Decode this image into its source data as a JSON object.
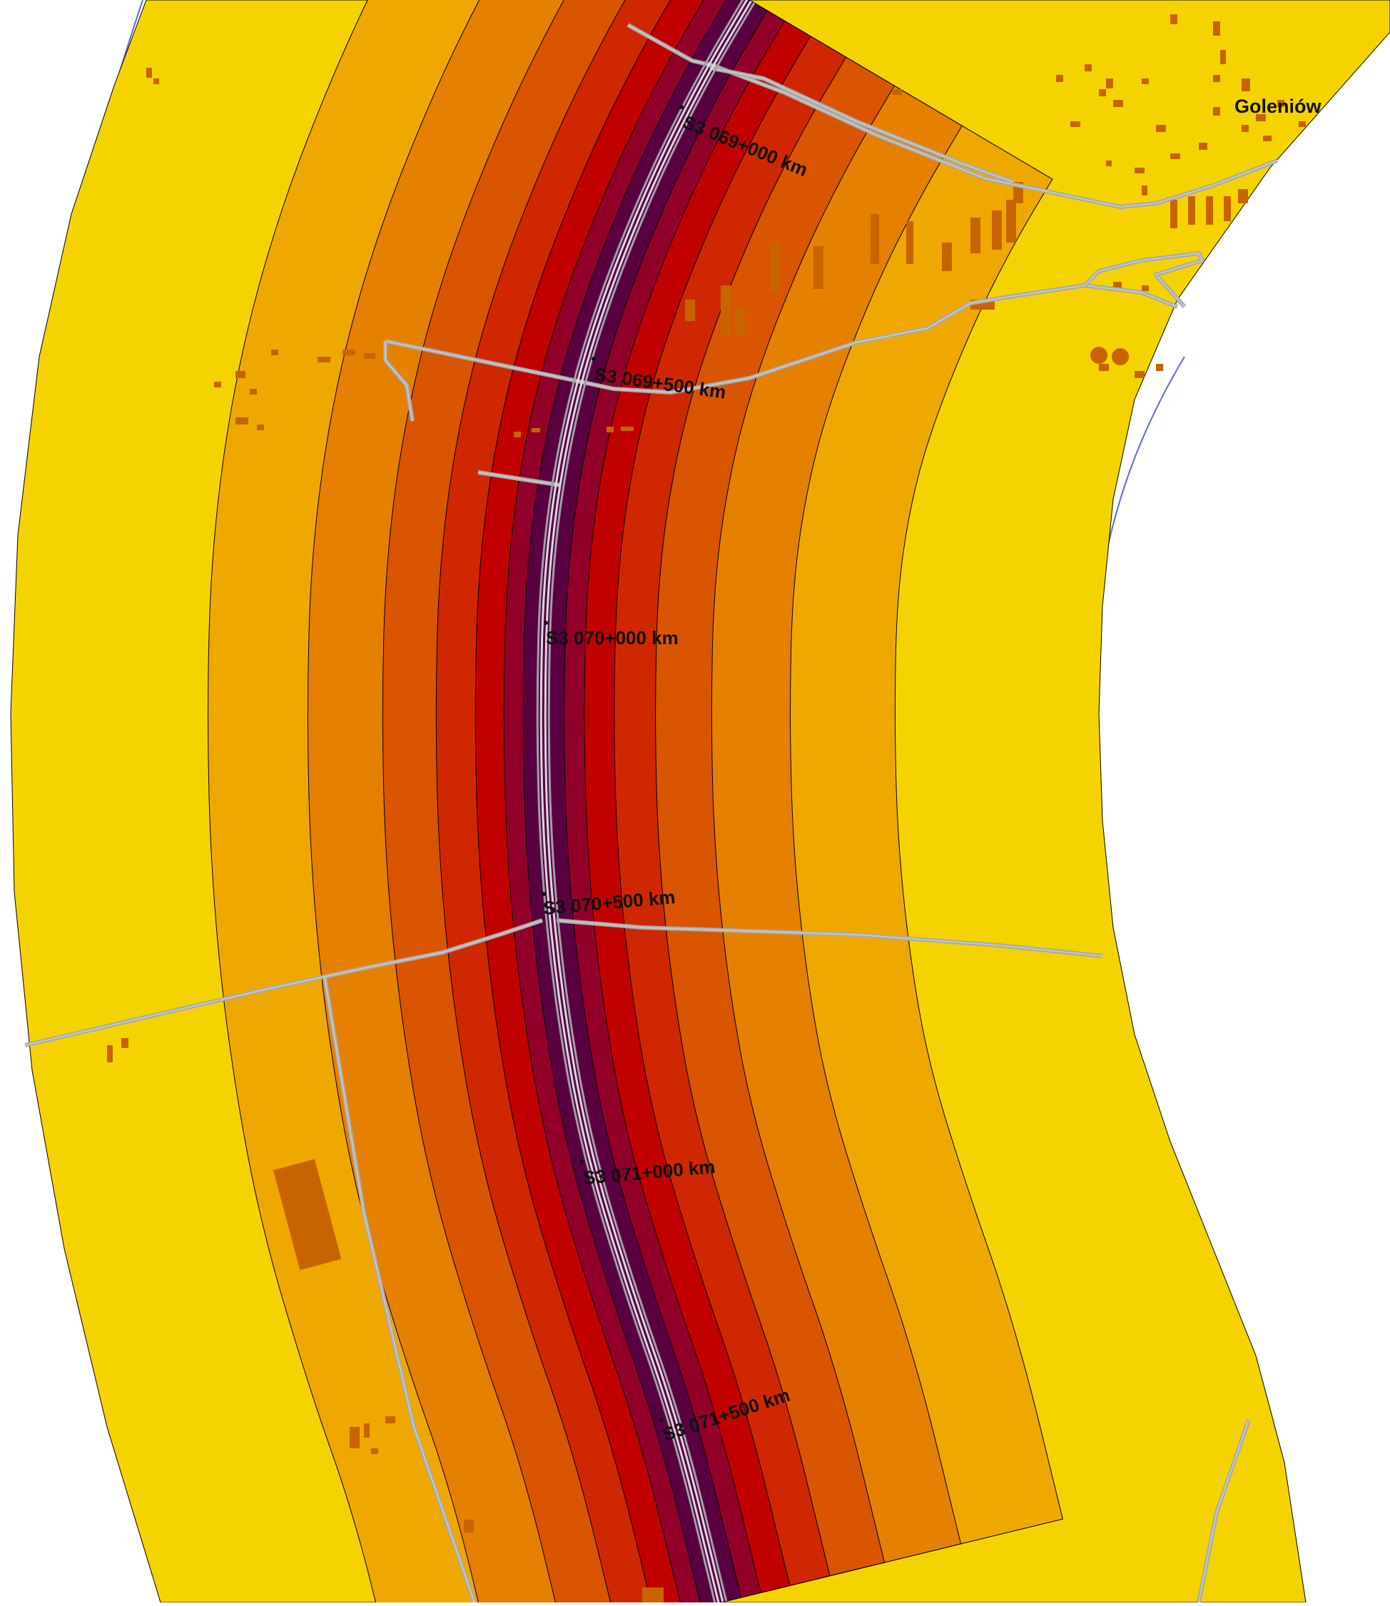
{
  "map": {
    "town_label": "Goleniów",
    "road_markers": [
      {
        "label": "S3 069+000 km"
      },
      {
        "label": "S3 069+500 km"
      },
      {
        "label": "S3 070+000 km"
      },
      {
        "label": "S3 070+500 km"
      },
      {
        "label": "S3 071+000 km"
      },
      {
        "label": "S3 071+500 km"
      }
    ],
    "colors": {
      "background": "#ffffff",
      "zone_outer": "#f5d300",
      "zone_2": "#efa800",
      "zone_3": "#e58000",
      "zone_4": "#d95500",
      "zone_5": "#cf2800",
      "zone_6": "#c10000",
      "zone_7": "#92002a",
      "zone_core": "#5a0040",
      "road": "#a9a9a9",
      "road_edge": "#c8c8c8",
      "building": "#c86400",
      "boundary_outline": "#5a6be0"
    }
  }
}
